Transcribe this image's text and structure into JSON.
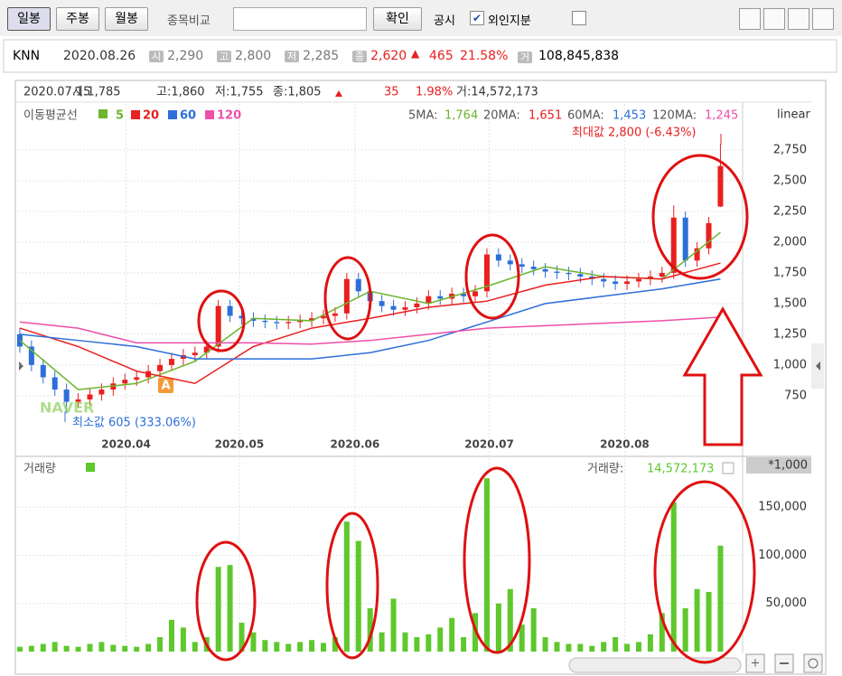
{
  "toolbar": {
    "buttons": [
      "일봉",
      "주봉",
      "월봉"
    ],
    "compare_label": "종목비교",
    "confirm": "확인",
    "disclosure": "공시",
    "foreign": "외인지분"
  },
  "quote": {
    "name": "KNN",
    "date": "2020.08.26",
    "items": [
      {
        "label": "시",
        "value": "2,290"
      },
      {
        "label": "고",
        "value": "2,800"
      },
      {
        "label": "저",
        "value": "2,285"
      },
      {
        "label": "종",
        "value": "2,620"
      }
    ],
    "change": "465",
    "change_pct": "21.58%",
    "volume_label": "거",
    "volume": "108,845,838"
  },
  "chart_data": [
    {
      "type": "candlestick",
      "header": {
        "date": "2020.07.15",
        "open": "시:1,785",
        "high": "고:1,860",
        "low": "저:1,755",
        "close": "종:1,805",
        "change": "35",
        "change_pct": "1.98%",
        "volume": "거:14,572,173"
      },
      "legend_title": "이동평균선",
      "scale_label": "linear",
      "max_label": "최대값 2,800 (-6.43%)",
      "min_label": "최소값 605 (333.06%)",
      "watermark": "NAVER",
      "badge": "A",
      "open": [
        1250,
        1150,
        1000,
        900,
        800,
        700,
        720,
        760,
        800,
        850,
        880,
        900,
        950,
        1000,
        1050,
        1080,
        1100,
        1150,
        1480,
        1400,
        1380,
        1360,
        1350,
        1340,
        1350,
        1360,
        1380,
        1400,
        1420,
        1700,
        1600,
        1520,
        1480,
        1450,
        1470,
        1500,
        1560,
        1540,
        1580,
        1560,
        1600,
        1900,
        1850,
        1820,
        1800,
        1780,
        1760,
        1750,
        1740,
        1720,
        1700,
        1680,
        1660,
        1680,
        1700,
        1720,
        1750,
        2200,
        1850,
        1950,
        2290
      ],
      "high": [
        1300,
        1200,
        1050,
        950,
        850,
        770,
        810,
        850,
        900,
        930,
        950,
        1000,
        1050,
        1100,
        1130,
        1150,
        1200,
        1530,
        1530,
        1450,
        1430,
        1410,
        1400,
        1400,
        1410,
        1430,
        1450,
        1470,
        1750,
        1750,
        1650,
        1570,
        1530,
        1520,
        1550,
        1610,
        1610,
        1630,
        1630,
        1650,
        1950,
        1950,
        1900,
        1870,
        1850,
        1830,
        1810,
        1800,
        1790,
        1770,
        1750,
        1730,
        1730,
        1750,
        1770,
        1800,
        2300,
        2250,
        2000,
        2205,
        2800
      ],
      "low": [
        1100,
        950,
        850,
        750,
        605,
        650,
        670,
        710,
        750,
        800,
        830,
        850,
        900,
        950,
        1000,
        1030,
        1050,
        1100,
        1350,
        1330,
        1310,
        1300,
        1290,
        1290,
        1300,
        1310,
        1330,
        1350,
        1370,
        1550,
        1470,
        1430,
        1400,
        1400,
        1420,
        1450,
        1490,
        1490,
        1510,
        1510,
        1550,
        1800,
        1770,
        1750,
        1730,
        1710,
        1700,
        1690,
        1670,
        1650,
        1630,
        1610,
        1610,
        1630,
        1650,
        1670,
        1700,
        1800,
        1800,
        1900,
        2285
      ],
      "close": [
        1150,
        1000,
        900,
        800,
        700,
        720,
        760,
        800,
        850,
        880,
        900,
        950,
        1000,
        1050,
        1080,
        1100,
        1150,
        1480,
        1400,
        1380,
        1360,
        1350,
        1340,
        1350,
        1360,
        1380,
        1400,
        1420,
        1700,
        1600,
        1520,
        1480,
        1450,
        1470,
        1500,
        1560,
        1540,
        1580,
        1560,
        1600,
        1900,
        1850,
        1820,
        1800,
        1780,
        1760,
        1750,
        1740,
        1720,
        1700,
        1680,
        1660,
        1680,
        1700,
        1720,
        1750,
        2200,
        1850,
        1950,
        2155,
        2620
      ],
      "up_color": "#e8201f",
      "down_color": "#2d6fd9",
      "series": [
        {
          "name": "5",
          "ma_label": "5MA:",
          "ma_value": "1,764",
          "color": "#6cb52d",
          "x": [
            0,
            5,
            10,
            15,
            20,
            25,
            30,
            35,
            40,
            45,
            50,
            55,
            60
          ],
          "values": [
            1200,
            800,
            850,
            1030,
            1380,
            1360,
            1600,
            1500,
            1640,
            1800,
            1720,
            1700,
            2080
          ]
        },
        {
          "name": "20",
          "ma_label": "20MA:",
          "ma_value": "1,651",
          "color": "#e8201f",
          "x": [
            0,
            5,
            10,
            15,
            20,
            25,
            30,
            35,
            40,
            45,
            50,
            55,
            60
          ],
          "values": [
            1300,
            1150,
            950,
            850,
            1150,
            1300,
            1380,
            1470,
            1520,
            1650,
            1720,
            1700,
            1830
          ]
        },
        {
          "name": "60",
          "ma_label": "60MA:",
          "ma_value": "1,453",
          "color": "#2d6fd9",
          "x": [
            0,
            5,
            10,
            15,
            20,
            25,
            30,
            35,
            40,
            45,
            50,
            55,
            60
          ],
          "values": [
            1250,
            1200,
            1150,
            1050,
            1050,
            1050,
            1100,
            1200,
            1350,
            1500,
            1560,
            1620,
            1700
          ]
        },
        {
          "name": "120",
          "ma_label": "120MA:",
          "ma_value": "1,245",
          "color": "#ee4fa8",
          "x": [
            0,
            5,
            10,
            15,
            20,
            25,
            30,
            35,
            40,
            45,
            50,
            55,
            60
          ],
          "values": [
            1350,
            1300,
            1180,
            1180,
            1180,
            1170,
            1200,
            1250,
            1300,
            1320,
            1340,
            1360,
            1390
          ]
        }
      ],
      "ylim": [
        440,
        3125
      ],
      "yticks": [
        {
          "value": 750,
          "label": "750"
        },
        {
          "value": 1000,
          "label": "1,000"
        },
        {
          "value": 1250,
          "label": "1,250"
        },
        {
          "value": 1500,
          "label": "1,500"
        },
        {
          "value": 1750,
          "label": "1,750"
        },
        {
          "value": 2000,
          "label": "2,000"
        },
        {
          "value": 2250,
          "label": "2,250"
        },
        {
          "value": 2500,
          "label": "2,500"
        },
        {
          "value": 2750,
          "label": "2,750"
        }
      ],
      "xlim": [
        -0.15,
        61.9
      ],
      "xticks": [
        {
          "value": 9.1,
          "label": "2020.04"
        },
        {
          "value": 18.8,
          "label": "2020.05"
        },
        {
          "value": 28.7,
          "label": "2020.06"
        },
        {
          "value": 40.2,
          "label": "2020.07"
        },
        {
          "value": 51.8,
          "label": "2020.08"
        }
      ],
      "grid": true
    },
    {
      "type": "bar",
      "title": "거래량",
      "color": "#5ec82d",
      "scale_note": "*1,000",
      "readout_label": "거래량:",
      "readout_value": "14,572,173",
      "values": [
        5000,
        6000,
        8000,
        10000,
        6000,
        5000,
        8000,
        10000,
        7000,
        6000,
        5000,
        8000,
        15000,
        33000,
        25000,
        10000,
        15000,
        88000,
        90000,
        30000,
        20000,
        12000,
        10000,
        8000,
        10000,
        12000,
        9000,
        15000,
        135000,
        115000,
        45000,
        20000,
        55000,
        20000,
        15000,
        18000,
        25000,
        35000,
        15000,
        40000,
        180000,
        50000,
        65000,
        28000,
        45000,
        15000,
        10000,
        8000,
        8000,
        6000,
        10000,
        15000,
        8000,
        10000,
        18000,
        40000,
        155000,
        45000,
        65000,
        62000,
        110000
      ],
      "ylim": [
        0,
        184000
      ],
      "yticks": [
        {
          "value": 50000,
          "label": "50,000"
        },
        {
          "value": 100000,
          "label": "100,000"
        },
        {
          "value": 150000,
          "label": "150,000"
        }
      ],
      "xlim": [
        -0.15,
        61.9
      ],
      "grid": true
    }
  ]
}
